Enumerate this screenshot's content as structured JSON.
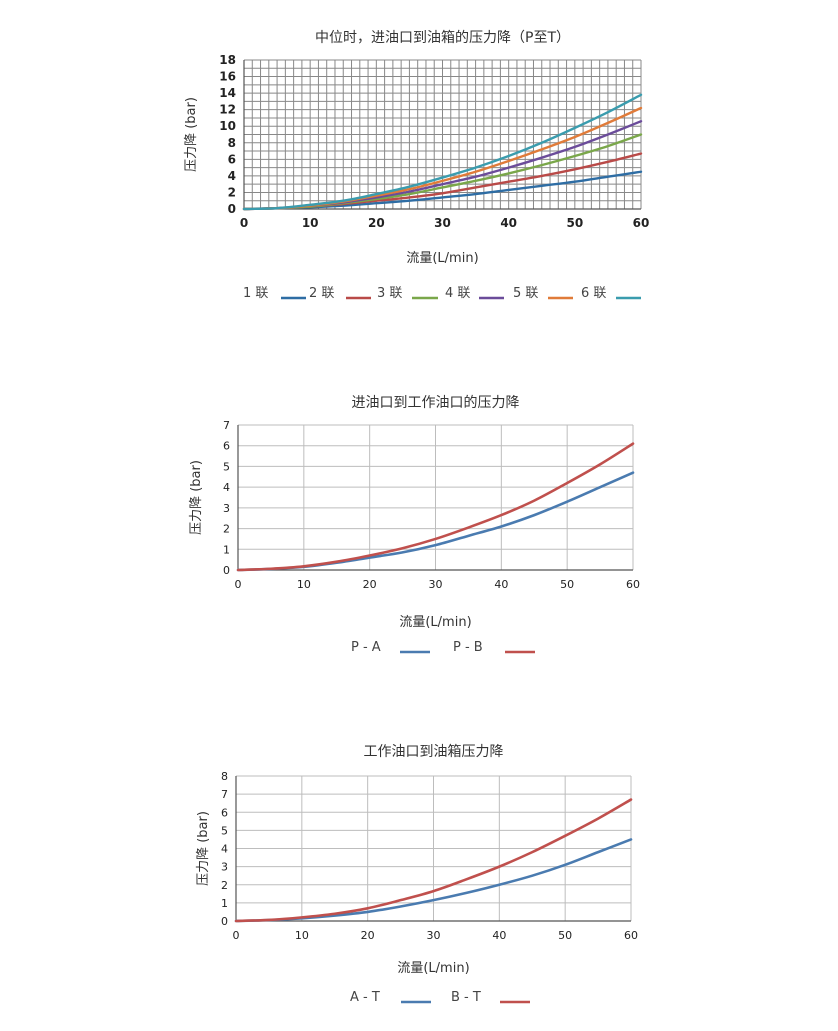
{
  "chart_data": [
    {
      "type": "line",
      "title": "中位时，进油口到油箱的压力降（P至T）",
      "xlabel": "流量(L/min)",
      "ylabel": "压力降 (bar)",
      "xlim": [
        0,
        60
      ],
      "ylim": [
        0,
        18
      ],
      "x_ticks": [
        0,
        10,
        20,
        30,
        40,
        50,
        60
      ],
      "y_ticks": [
        0,
        2,
        4,
        6,
        8,
        10,
        12,
        14,
        16,
        18
      ],
      "grid": "dense",
      "legend": "bottom",
      "x": [
        0,
        5,
        10,
        15,
        20,
        25,
        30,
        35,
        40,
        45,
        50,
        55,
        60
      ],
      "series": [
        {
          "name": "1 联",
          "color": "#2e6da4",
          "values": [
            0,
            0.1,
            0.2,
            0.4,
            0.7,
            1.0,
            1.4,
            1.8,
            2.3,
            2.8,
            3.3,
            3.9,
            4.5
          ]
        },
        {
          "name": "2 联",
          "color": "#b94a48",
          "values": [
            0,
            0.1,
            0.3,
            0.6,
            1.0,
            1.4,
            1.9,
            2.6,
            3.3,
            4.0,
            4.8,
            5.7,
            6.7
          ]
        },
        {
          "name": "3 联",
          "color": "#7aa74a",
          "values": [
            0,
            0.1,
            0.3,
            0.7,
            1.2,
            1.8,
            2.6,
            3.4,
            4.3,
            5.3,
            6.4,
            7.6,
            9.0
          ]
        },
        {
          "name": "4 联",
          "color": "#6b4c9a",
          "values": [
            0,
            0.1,
            0.4,
            0.8,
            1.4,
            2.1,
            3.0,
            3.9,
            5.0,
            6.2,
            7.5,
            9.0,
            10.6
          ]
        },
        {
          "name": "5 联",
          "color": "#e07b39",
          "values": [
            0,
            0.1,
            0.4,
            0.9,
            1.6,
            2.4,
            3.4,
            4.5,
            5.8,
            7.2,
            8.7,
            10.4,
            12.2
          ]
        },
        {
          "name": "6 联",
          "color": "#3a9cae",
          "values": [
            0,
            0.1,
            0.5,
            1.0,
            1.8,
            2.7,
            3.8,
            5.0,
            6.4,
            8.0,
            9.8,
            11.7,
            13.8
          ]
        }
      ]
    },
    {
      "type": "line",
      "title": "进油口到工作油口的压力降",
      "xlabel": "流量(L/min)",
      "ylabel": "压力降 (bar)",
      "xlim": [
        0,
        60
      ],
      "ylim": [
        0,
        7
      ],
      "x_ticks": [
        0,
        10,
        20,
        30,
        40,
        50,
        60
      ],
      "y_ticks": [
        0,
        1,
        2,
        3,
        4,
        5,
        6,
        7
      ],
      "grid": "major",
      "legend": "bottom",
      "x": [
        0,
        5,
        10,
        15,
        20,
        25,
        30,
        35,
        40,
        45,
        50,
        55,
        60
      ],
      "series": [
        {
          "name": "P - A",
          "color": "#4a7bb0",
          "values": [
            0,
            0.05,
            0.15,
            0.35,
            0.6,
            0.85,
            1.2,
            1.65,
            2.1,
            2.65,
            3.3,
            4.0,
            4.7
          ]
        },
        {
          "name": "P - B",
          "color": "#c0504d",
          "values": [
            0,
            0.06,
            0.18,
            0.4,
            0.7,
            1.05,
            1.5,
            2.05,
            2.65,
            3.35,
            4.2,
            5.1,
            6.1
          ]
        }
      ]
    },
    {
      "type": "line",
      "title": "工作油口到油箱压力降",
      "xlabel": "流量(L/min)",
      "ylabel": "压力降 (bar)",
      "xlim": [
        0,
        60
      ],
      "ylim": [
        0,
        8
      ],
      "x_ticks": [
        0,
        10,
        20,
        30,
        40,
        50,
        60
      ],
      "y_ticks": [
        0,
        1,
        2,
        3,
        4,
        5,
        6,
        7,
        8
      ],
      "grid": "major",
      "legend": "bottom",
      "x": [
        0,
        5,
        10,
        15,
        20,
        25,
        30,
        35,
        40,
        45,
        50,
        55,
        60
      ],
      "series": [
        {
          "name": "A - T",
          "color": "#4a7bb0",
          "values": [
            0,
            0.05,
            0.15,
            0.3,
            0.5,
            0.8,
            1.15,
            1.55,
            2.0,
            2.5,
            3.1,
            3.8,
            4.5
          ]
        },
        {
          "name": "B - T",
          "color": "#c0504d",
          "values": [
            0,
            0.06,
            0.2,
            0.4,
            0.7,
            1.15,
            1.65,
            2.3,
            3.0,
            3.8,
            4.7,
            5.65,
            6.7
          ]
        }
      ]
    }
  ]
}
